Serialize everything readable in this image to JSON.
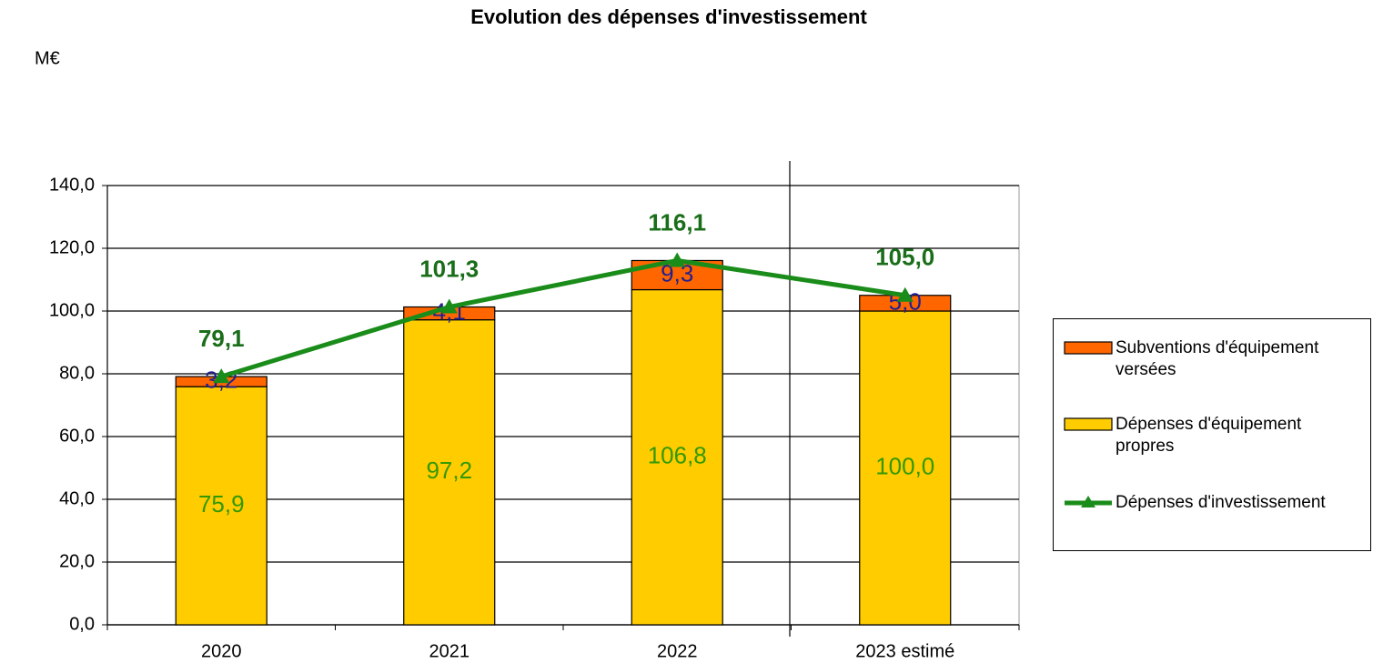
{
  "chart_data": {
    "type": "stacked_bar_line",
    "title": "Evolution des dépenses d'investissement",
    "y_label": "M€",
    "categories": [
      "2020",
      "2021",
      "2022",
      "2023 estimé"
    ],
    "series": [
      {
        "name": "Subventions d'équipement versées",
        "color": "#ff6600",
        "kind": "bar",
        "values": [
          3.2,
          4.1,
          9.3,
          5.0
        ],
        "value_labels": [
          "3,2",
          "4,1",
          "9,3",
          "5,0"
        ]
      },
      {
        "name": "Dépenses d'équipement propres",
        "color": "#ffcc00",
        "kind": "bar",
        "values": [
          75.9,
          97.2,
          106.8,
          100.0
        ],
        "value_labels": [
          "75,9",
          "97,2",
          "106,8",
          "100,0"
        ]
      },
      {
        "name": "Dépenses d'investissement",
        "color": "#1a8c1a",
        "kind": "line",
        "values": [
          79.1,
          101.3,
          116.1,
          105.0
        ],
        "value_labels": [
          "79,1",
          "101,3",
          "116,1",
          "105,0"
        ]
      }
    ],
    "ylim": [
      0,
      140
    ],
    "yticks": [
      {
        "value": 0,
        "label": "0,0"
      },
      {
        "value": 20,
        "label": "20,0"
      },
      {
        "value": 40,
        "label": "40,0"
      },
      {
        "value": 60,
        "label": "60,0"
      },
      {
        "value": 80,
        "label": "80,0"
      },
      {
        "value": 100,
        "label": "100,0"
      },
      {
        "value": 120,
        "label": "120,0"
      },
      {
        "value": 140,
        "label": "140,0"
      }
    ],
    "grid": true,
    "legend": "right"
  }
}
